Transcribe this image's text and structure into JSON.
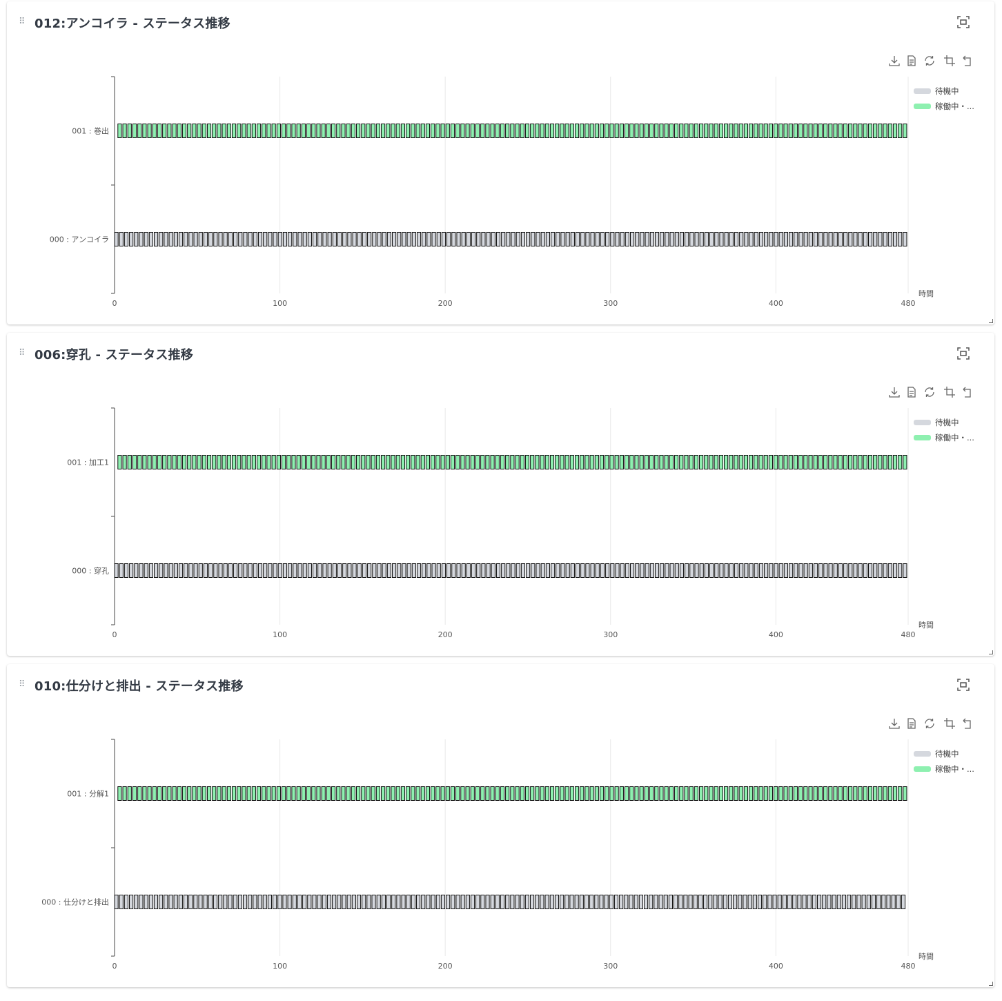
{
  "icons": {
    "drag": "drag-handle-icon",
    "fullscreen": "fullscreen-icon",
    "download": "download-icon",
    "data_view": "data-view-icon",
    "refresh": "refresh-icon",
    "zoom": "zoom-icon",
    "zoom_reset": "zoom-reset-icon"
  },
  "colors": {
    "idle": "#d5d8de",
    "running": "#8ef0b0",
    "bar_stroke": "#111111",
    "axis": "#444444",
    "grid": "#e8e8e8"
  },
  "panels": [
    {
      "title": "012:アンコイラ - ステータス推移",
      "legend": [
        "待機中",
        "稼働中・..."
      ],
      "x_axis_name": "時間",
      "chart_data": {
        "type": "bar",
        "title": "012:アンコイラ - ステータス推移",
        "categories": [
          "000 : アンコイラ",
          "001 : 巻出"
        ],
        "xlim": [
          0,
          480
        ],
        "x_ticks": [
          0,
          100,
          200,
          300,
          400,
          480
        ],
        "xlabel": "時間",
        "grid": true,
        "legend_position": "right",
        "series": [
          {
            "name": "待機中",
            "color": "#d5d8de",
            "category": "000 : アンコイラ",
            "start": 0,
            "end": 480,
            "segment_count": 160
          },
          {
            "name": "稼働中・...",
            "color": "#8ef0b0",
            "category": "001 : 巻出",
            "start": 2,
            "end": 480,
            "segment_count": 159
          }
        ]
      }
    },
    {
      "title": "006:穿孔 - ステータス推移",
      "legend": [
        "待機中",
        "稼働中・..."
      ],
      "x_axis_name": "時間",
      "chart_data": {
        "type": "bar",
        "title": "006:穿孔 - ステータス推移",
        "categories": [
          "000 : 穿孔",
          "001 : 加工1"
        ],
        "xlim": [
          0,
          480
        ],
        "x_ticks": [
          0,
          100,
          200,
          300,
          400,
          480
        ],
        "xlabel": "時間",
        "grid": true,
        "legend_position": "right",
        "series": [
          {
            "name": "待機中",
            "color": "#d5d8de",
            "category": "000 : 穿孔",
            "start": 0,
            "end": 480,
            "segment_count": 160
          },
          {
            "name": "稼働中・...",
            "color": "#8ef0b0",
            "category": "001 : 加工1",
            "start": 2,
            "end": 480,
            "segment_count": 159
          }
        ]
      }
    },
    {
      "title": "010:仕分けと排出 - ステータス推移",
      "legend": [
        "待機中",
        "稼働中・..."
      ],
      "x_axis_name": "時間",
      "chart_data": {
        "type": "bar",
        "title": "010:仕分けと排出 - ステータス推移",
        "categories": [
          "000 : 仕分けと排出",
          "001 : 分解1"
        ],
        "xlim": [
          0,
          480
        ],
        "x_ticks": [
          0,
          100,
          200,
          300,
          400,
          480
        ],
        "xlabel": "時間",
        "grid": true,
        "legend_position": "right",
        "series": [
          {
            "name": "待機中",
            "color": "#d5d8de",
            "category": "000 : 仕分けと排出",
            "start": 0,
            "end": 479,
            "segment_count": 160
          },
          {
            "name": "稼働中・...",
            "color": "#8ef0b0",
            "category": "001 : 分解1",
            "start": 2,
            "end": 480,
            "segment_count": 159
          }
        ]
      }
    }
  ]
}
